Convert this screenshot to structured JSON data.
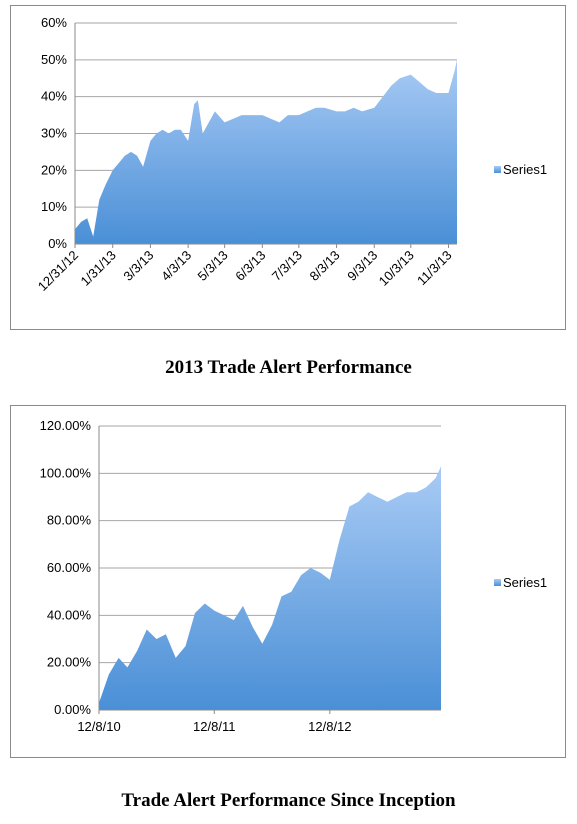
{
  "chart_data": [
    {
      "type": "area",
      "caption": "2013 Trade Alert Performance",
      "series": [
        {
          "name": "Series1"
        }
      ],
      "ylim": [
        0,
        0.6
      ],
      "yticks": [
        "0%",
        "10%",
        "20%",
        "30%",
        "40%",
        "50%",
        "60%"
      ],
      "xticks": [
        "12/31/12",
        "1/31/13",
        "3/3/13",
        "4/3/13",
        "5/3/13",
        "6/3/13",
        "7/3/13",
        "8/3/13",
        "9/3/13",
        "10/3/13",
        "11/3/13"
      ],
      "x": [
        "12/31/12",
        "1/5/13",
        "1/10/13",
        "1/15/13",
        "1/20/13",
        "1/25/13",
        "1/31/13",
        "2/5/13",
        "2/10/13",
        "2/15/13",
        "2/20/13",
        "2/25/13",
        "3/3/13",
        "3/8/13",
        "3/13/13",
        "3/18/13",
        "3/23/13",
        "3/28/13",
        "4/3/13",
        "4/8/13",
        "4/11/13",
        "4/15/13",
        "4/20/13",
        "4/25/13",
        "5/3/13",
        "5/10/13",
        "5/17/13",
        "5/24/13",
        "6/3/13",
        "6/10/13",
        "6/17/13",
        "6/24/13",
        "7/3/13",
        "7/10/13",
        "7/17/13",
        "7/24/13",
        "8/3/13",
        "8/10/13",
        "8/17/13",
        "8/24/13",
        "9/3/13",
        "9/10/13",
        "9/17/13",
        "9/24/13",
        "10/3/13",
        "10/10/13",
        "10/17/13",
        "10/24/13",
        "11/3/13",
        "11/8/13",
        "11/10/13"
      ],
      "values": [
        0.04,
        0.06,
        0.07,
        0.02,
        0.12,
        0.16,
        0.2,
        0.22,
        0.24,
        0.25,
        0.24,
        0.21,
        0.28,
        0.3,
        0.31,
        0.3,
        0.31,
        0.31,
        0.28,
        0.38,
        0.39,
        0.3,
        0.33,
        0.36,
        0.33,
        0.34,
        0.35,
        0.35,
        0.35,
        0.34,
        0.33,
        0.35,
        0.35,
        0.36,
        0.37,
        0.37,
        0.36,
        0.36,
        0.37,
        0.36,
        0.37,
        0.4,
        0.43,
        0.45,
        0.46,
        0.44,
        0.42,
        0.41,
        0.41,
        0.47,
        0.5
      ]
    },
    {
      "type": "area",
      "caption": "Trade Alert Performance Since Inception",
      "series": [
        {
          "name": "Series1"
        }
      ],
      "ylim": [
        0,
        1.2
      ],
      "yticks": [
        "0.00%",
        "20.00%",
        "40.00%",
        "60.00%",
        "80.00%",
        "100.00%",
        "120.00%"
      ],
      "xticks": [
        "12/8/10",
        "12/8/11",
        "12/8/12"
      ],
      "x": [
        "12/8/10",
        "1/8/11",
        "2/8/11",
        "3/8/11",
        "4/8/11",
        "5/8/11",
        "6/8/11",
        "7/8/11",
        "8/8/11",
        "9/8/11",
        "10/8/11",
        "11/8/11",
        "12/8/11",
        "1/8/12",
        "2/8/12",
        "3/8/12",
        "4/8/12",
        "5/8/12",
        "6/8/12",
        "7/8/12",
        "8/8/12",
        "9/8/12",
        "10/8/12",
        "11/8/12",
        "12/8/12",
        "1/8/13",
        "2/8/13",
        "3/8/13",
        "4/8/13",
        "5/8/13",
        "6/8/13",
        "7/8/13",
        "8/8/13",
        "9/8/13",
        "10/8/13",
        "11/8/13",
        "11/25/13"
      ],
      "values": [
        0.03,
        0.15,
        0.22,
        0.18,
        0.25,
        0.34,
        0.3,
        0.32,
        0.22,
        0.27,
        0.41,
        0.45,
        0.42,
        0.4,
        0.38,
        0.44,
        0.35,
        0.28,
        0.36,
        0.48,
        0.5,
        0.57,
        0.6,
        0.58,
        0.55,
        0.72,
        0.86,
        0.88,
        0.92,
        0.9,
        0.88,
        0.9,
        0.92,
        0.92,
        0.94,
        0.98,
        1.03
      ]
    }
  ],
  "colors": {
    "area_top": "#a9cbf5",
    "area_bottom": "#4a8fd6",
    "grid": "#a6a6a6",
    "axis": "#8a8a8a"
  }
}
